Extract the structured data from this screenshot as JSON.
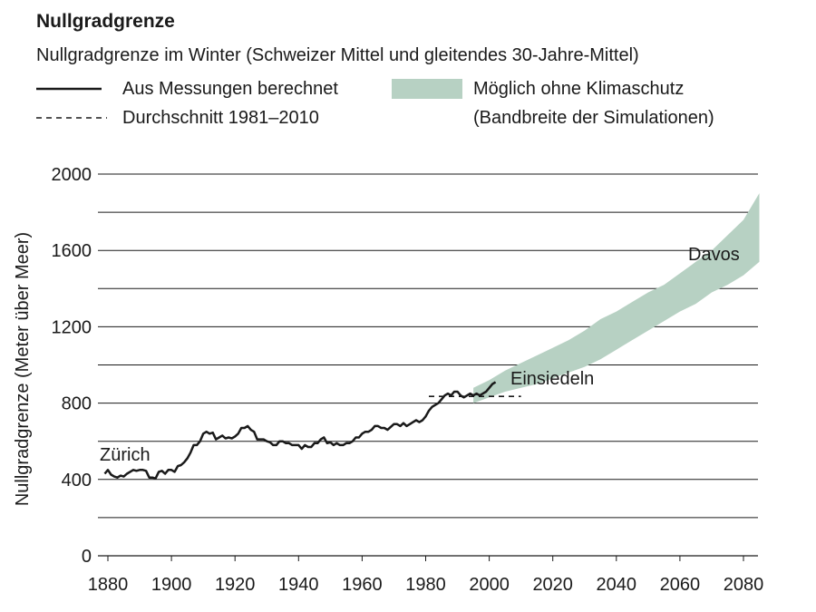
{
  "chart_data": {
    "type": "line",
    "title": "Nullgradgrenze",
    "subtitle": "Nullgradgrenze im Winter (Schweizer Mittel und gleitendes 30-Jahre-Mittel)",
    "ylabel": "Nullgradgrenze (Meter über Meer)",
    "xlabel": "",
    "xlim": [
      1877,
      2085
    ],
    "ylim": [
      0,
      2000
    ],
    "x_ticks": [
      1880,
      1900,
      1920,
      1940,
      1960,
      1980,
      2000,
      2020,
      2040,
      2060,
      2080
    ],
    "y_ticks": [
      0,
      400,
      800,
      1200,
      1600,
      2000
    ],
    "y_gridlines": [
      200,
      400,
      600,
      800,
      1000,
      1200,
      1400,
      1600,
      1800,
      2000
    ],
    "legend": {
      "measured": "Aus Messungen berechnet",
      "average": "Durchschnitt 1981–2010",
      "band": "Möglich ohne Klimaschutz",
      "band_note": "(Bandbreite der Simulationen)"
    },
    "annotations": {
      "zurich": "Zürich",
      "einsiedeln": "Einsiedeln",
      "davos": "Davos"
    },
    "series": [
      {
        "name": "Aus Messungen berechnet",
        "x": [
          1879,
          1880,
          1881,
          1882,
          1883,
          1884,
          1885,
          1886,
          1887,
          1888,
          1889,
          1890,
          1891,
          1892,
          1893,
          1894,
          1895,
          1896,
          1897,
          1898,
          1899,
          1900,
          1901,
          1902,
          1903,
          1904,
          1905,
          1906,
          1907,
          1908,
          1909,
          1910,
          1911,
          1912,
          1913,
          1914,
          1915,
          1916,
          1917,
          1918,
          1919,
          1920,
          1921,
          1922,
          1923,
          1924,
          1925,
          1926,
          1927,
          1928,
          1929,
          1930,
          1931,
          1932,
          1933,
          1934,
          1935,
          1936,
          1937,
          1938,
          1939,
          1940,
          1941,
          1942,
          1943,
          1944,
          1945,
          1946,
          1947,
          1948,
          1949,
          1950,
          1951,
          1952,
          1953,
          1954,
          1955,
          1956,
          1957,
          1958,
          1959,
          1960,
          1961,
          1962,
          1963,
          1964,
          1965,
          1966,
          1967,
          1968,
          1969,
          1970,
          1971,
          1972,
          1973,
          1974,
          1975,
          1976,
          1977,
          1978,
          1979,
          1980,
          1981,
          1982,
          1983,
          1984,
          1985,
          1986,
          1987,
          1988,
          1989,
          1990,
          1991,
          1992,
          1993,
          1994,
          1995,
          1996,
          1997,
          1998,
          1999,
          2000,
          2001,
          2002
        ],
        "values": [
          430,
          450,
          425,
          415,
          410,
          420,
          415,
          430,
          440,
          450,
          445,
          450,
          450,
          445,
          410,
          410,
          405,
          440,
          445,
          430,
          450,
          450,
          440,
          470,
          475,
          490,
          510,
          540,
          580,
          580,
          600,
          640,
          650,
          640,
          645,
          610,
          620,
          630,
          615,
          620,
          615,
          625,
          640,
          670,
          670,
          680,
          660,
          650,
          610,
          610,
          610,
          600,
          595,
          580,
          580,
          600,
          600,
          590,
          590,
          580,
          580,
          580,
          560,
          580,
          570,
          570,
          590,
          590,
          610,
          620,
          590,
          595,
          580,
          590,
          580,
          580,
          590,
          590,
          600,
          620,
          620,
          640,
          650,
          650,
          660,
          680,
          680,
          670,
          670,
          660,
          675,
          690,
          690,
          680,
          695,
          680,
          690,
          700,
          710,
          700,
          710,
          730,
          760,
          780,
          790,
          800,
          820,
          840,
          850,
          840,
          860,
          860,
          840,
          830,
          840,
          850,
          840,
          850,
          840,
          850,
          860,
          880,
          900,
          910
        ]
      },
      {
        "name": "Durchschnitt 1981–2010",
        "x": [
          1981,
          2010
        ],
        "values": [
          835,
          835
        ]
      },
      {
        "name": "Möglich ohne Klimaschutz",
        "type": "area",
        "x": [
          1995,
          2000,
          2005,
          2010,
          2015,
          2020,
          2025,
          2030,
          2035,
          2040,
          2045,
          2050,
          2055,
          2060,
          2065,
          2070,
          2075,
          2080,
          2085
        ],
        "upper": [
          880,
          920,
          970,
          1010,
          1050,
          1090,
          1130,
          1180,
          1240,
          1280,
          1330,
          1380,
          1420,
          1480,
          1540,
          1600,
          1680,
          1760,
          1900
        ],
        "lower": [
          800,
          830,
          860,
          880,
          900,
          930,
          960,
          990,
          1030,
          1080,
          1130,
          1180,
          1230,
          1280,
          1320,
          1380,
          1420,
          1470,
          1540
        ]
      }
    ]
  },
  "colors": {
    "line": "#1a1a1a",
    "band": "#b7d1c3",
    "grid": "#1a1a1a"
  }
}
